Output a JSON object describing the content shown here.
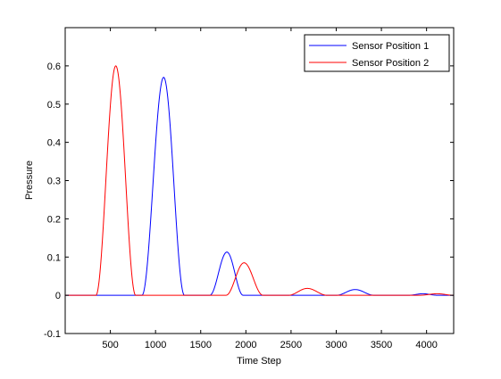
{
  "chart_data": {
    "type": "line",
    "title": "",
    "xlabel": "Time Step",
    "ylabel": "Pressure",
    "xlim": [
      0,
      4300
    ],
    "ylim": [
      -0.1,
      0.7
    ],
    "xticks": [
      500,
      1000,
      1500,
      2000,
      2500,
      3000,
      3500,
      4000
    ],
    "yticks": [
      -0.1,
      0,
      0.1,
      0.2,
      0.3,
      0.4,
      0.5,
      0.6
    ],
    "ytick_labels": [
      "-0.1",
      "0",
      "0.1",
      "0.2",
      "0.3",
      "0.4",
      "0.5",
      "0.6"
    ],
    "grid": false,
    "legend_position": "top-right",
    "series": [
      {
        "name": "Sensor Position 1",
        "color": "#0000ff",
        "pulses": [
          {
            "start": 850,
            "peak": 1090,
            "end": 1320,
            "amplitude": 0.57
          },
          {
            "start": 1600,
            "peak": 1790,
            "end": 1970,
            "amplitude": 0.113
          },
          {
            "start": 3000,
            "peak": 3210,
            "end": 3420,
            "amplitude": 0.015
          },
          {
            "start": 3800,
            "peak": 3960,
            "end": 4120,
            "amplitude": 0.004
          }
        ]
      },
      {
        "name": "Sensor Position 2",
        "color": "#ff0000",
        "pulses": [
          {
            "start": 340,
            "peak": 560,
            "end": 780,
            "amplitude": 0.6
          },
          {
            "start": 1780,
            "peak": 1980,
            "end": 2190,
            "amplitude": 0.085
          },
          {
            "start": 2470,
            "peak": 2680,
            "end": 2900,
            "amplitude": 0.018
          },
          {
            "start": 3920,
            "peak": 4120,
            "end": 4300,
            "amplitude": 0.004
          }
        ]
      }
    ]
  }
}
